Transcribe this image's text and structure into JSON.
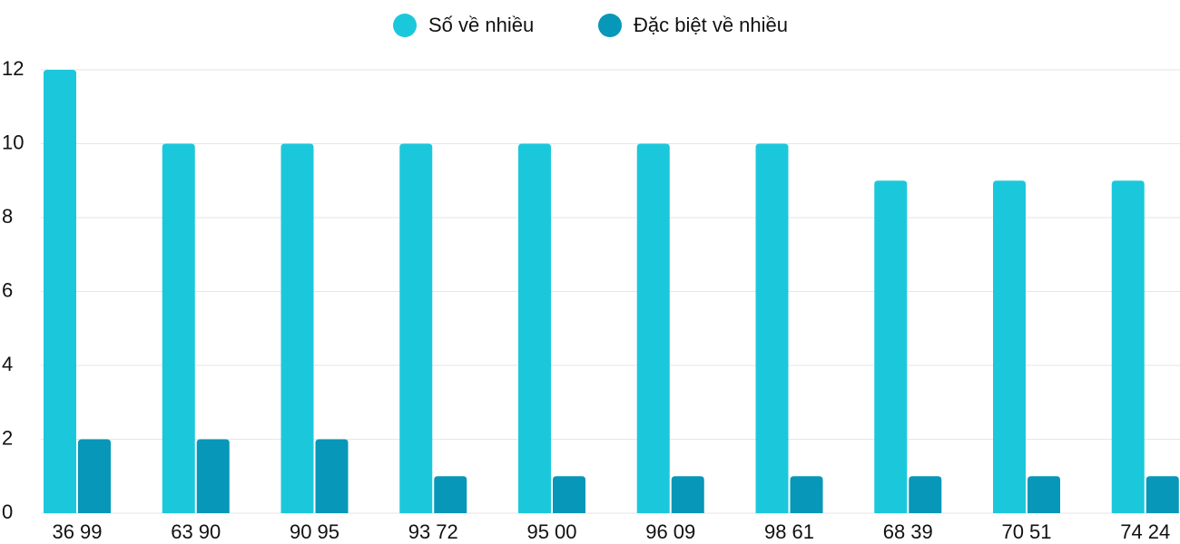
{
  "chart_data": {
    "type": "bar",
    "categories": [
      "36 99",
      "63 90",
      "90 95",
      "93 72",
      "95 00",
      "96 09",
      "98 61",
      "68 39",
      "70 51",
      "74 24"
    ],
    "series": [
      {
        "name": "Số về nhiều",
        "color": "#1bc8db",
        "values": [
          12,
          10,
          10,
          10,
          10,
          10,
          10,
          9,
          9,
          9
        ]
      },
      {
        "name": "Đặc biệt về nhiều",
        "color": "#0797b8",
        "values": [
          2,
          2,
          2,
          1,
          1,
          1,
          1,
          1,
          1,
          1
        ]
      }
    ],
    "ylim": [
      0,
      12
    ],
    "yticks": [
      0,
      2,
      4,
      6,
      8,
      10,
      12
    ],
    "grid": true,
    "legend": "top"
  }
}
